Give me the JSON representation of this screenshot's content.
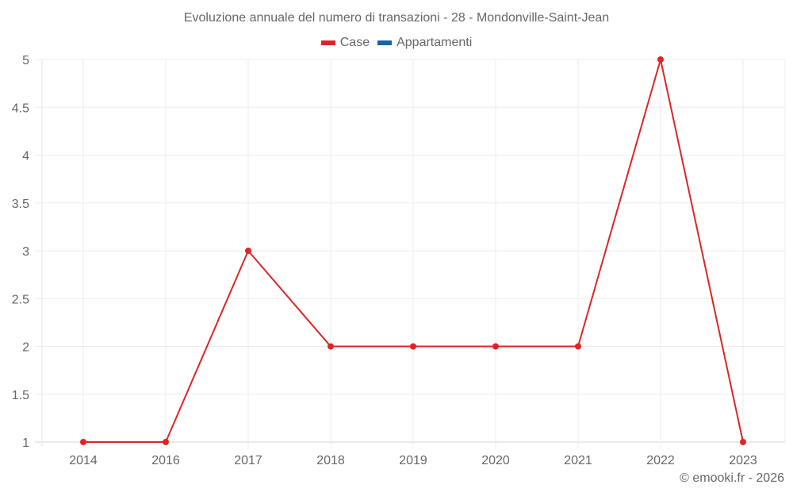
{
  "header": {
    "title": "Evoluzione annuale del numero di transazioni - 28 - Mondonville-Saint-Jean"
  },
  "legend": [
    {
      "label": "Case",
      "color": "#dc2626"
    },
    {
      "label": "Appartamenti",
      "color": "#1565a8"
    }
  ],
  "footer": {
    "credit": "© emooki.fr - 2026"
  },
  "chart_data": {
    "type": "line",
    "title": "Evoluzione annuale del numero di transazioni - 28 - Mondonville-Saint-Jean",
    "xlabel": "",
    "ylabel": "",
    "categories": [
      "2014",
      "2016",
      "2017",
      "2018",
      "2019",
      "2020",
      "2021",
      "2022",
      "2023"
    ],
    "series": [
      {
        "name": "Case",
        "color": "#dc2626",
        "values": [
          1,
          1,
          3,
          2,
          2,
          2,
          2,
          5,
          1
        ]
      },
      {
        "name": "Appartamenti",
        "color": "#1565a8",
        "values": []
      }
    ],
    "yticks": [
      "1",
      "1.5",
      "2",
      "2.5",
      "3",
      "3.5",
      "4",
      "4.5",
      "5"
    ],
    "ylim": [
      1,
      5
    ],
    "grid": true,
    "legend_position": "top"
  }
}
